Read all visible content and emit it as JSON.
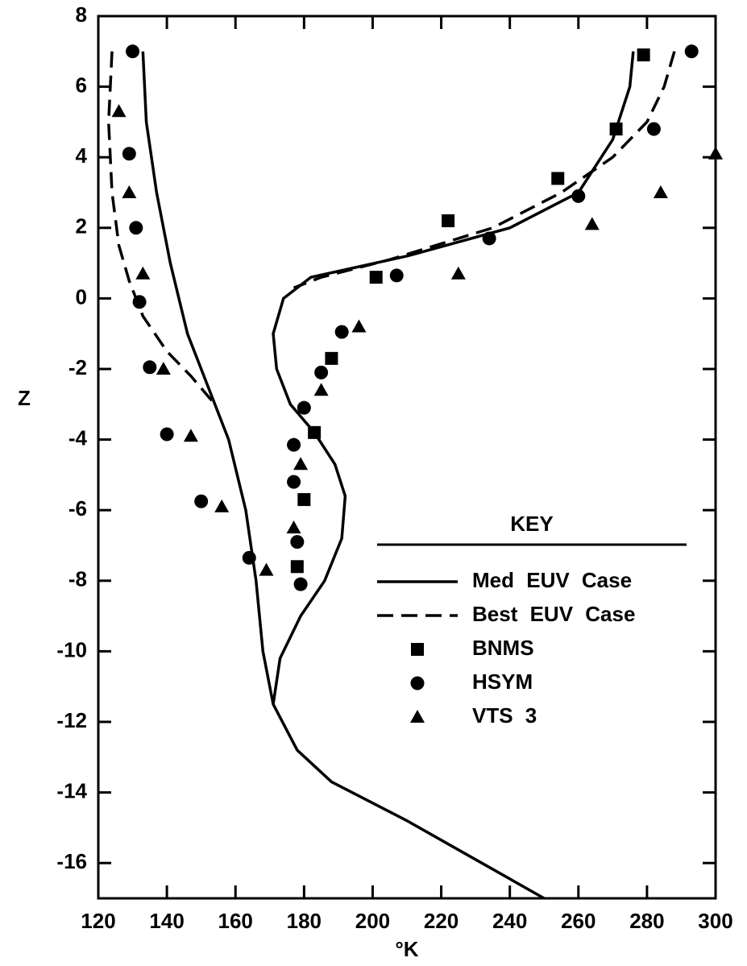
{
  "chart_data": {
    "type": "line",
    "xlabel": "°K",
    "ylabel": "Z",
    "xlim": [
      120,
      300
    ],
    "xticks": [
      120,
      140,
      160,
      180,
      200,
      220,
      240,
      260,
      280,
      300
    ],
    "ylim": [
      -17,
      8
    ],
    "yticks": [
      -16,
      -14,
      -12,
      -10,
      -8,
      -6,
      -4,
      -2,
      0,
      2,
      4,
      6,
      8
    ],
    "legend_title": "KEY",
    "legend": "lower right",
    "series": [
      {
        "name": "Med EUV Case",
        "color": "#000000",
        "line": "solid",
        "x": [
          133,
          134,
          137,
          141,
          146,
          152,
          158,
          163,
          166,
          168,
          171,
          178,
          188,
          210,
          230,
          250,
          null,
          276,
          275,
          270,
          260,
          240,
          210,
          182,
          174,
          171,
          172,
          176,
          183,
          189,
          192,
          191,
          186,
          179,
          173,
          171
        ],
        "values": [
          7,
          5,
          3,
          1,
          -1,
          -2.5,
          -4,
          -6,
          -8,
          -10,
          -11.5,
          -12.8,
          -13.7,
          -14.8,
          -15.9,
          -17,
          null,
          7,
          6,
          4.5,
          3,
          2,
          1.2,
          0.6,
          0,
          -1,
          -2,
          -3,
          -3.8,
          -4.7,
          -5.6,
          -6.8,
          -8,
          -9,
          -10.2,
          -11.5
        ]
      },
      {
        "name": "Best EUV Case",
        "color": "#000000",
        "line": "dashed",
        "x": [
          124,
          123,
          124,
          126,
          129,
          133,
          140,
          147,
          154,
          null,
          288,
          285,
          280,
          270,
          255,
          235,
          205,
          185,
          177
        ],
        "values": [
          7,
          5,
          3,
          1.5,
          0.5,
          -0.5,
          -1.5,
          -2.2,
          -3,
          null,
          7,
          6,
          5,
          4,
          3,
          2,
          1.1,
          0.6,
          0.3
        ]
      },
      {
        "name": "BNMS",
        "color": "#000000",
        "marker": "square",
        "x": [
          279,
          271,
          254,
          222,
          201,
          188,
          183,
          180,
          178
        ],
        "values": [
          6.9,
          4.8,
          3.4,
          2.2,
          0.6,
          -1.7,
          -3.8,
          -5.7,
          -7.6
        ]
      },
      {
        "name": "HSYM",
        "color": "#000000",
        "marker": "circle",
        "x": [
          130,
          129,
          131,
          132,
          135,
          140,
          150,
          164,
          178,
          177,
          177,
          180,
          185,
          191,
          207,
          234,
          260,
          282,
          293,
          179
        ],
        "values": [
          7,
          4.1,
          2,
          -0.1,
          -1.95,
          -3.85,
          -5.75,
          -7.35,
          -6.9,
          -4.15,
          -5.2,
          -3.1,
          -2.1,
          -0.95,
          0.65,
          1.7,
          2.9,
          4.8,
          7,
          -8.1
        ]
      },
      {
        "name": "VTS 3",
        "color": "#000000",
        "marker": "triangle",
        "x": [
          126,
          129,
          133,
          139,
          147,
          156,
          169,
          177,
          179,
          185,
          196,
          225,
          264,
          284,
          300
        ],
        "values": [
          5.3,
          3,
          0.7,
          -2,
          -3.9,
          -5.9,
          -7.7,
          -6.5,
          -4.7,
          -2.6,
          -0.8,
          0.7,
          2.1,
          3,
          4.1
        ]
      }
    ]
  }
}
